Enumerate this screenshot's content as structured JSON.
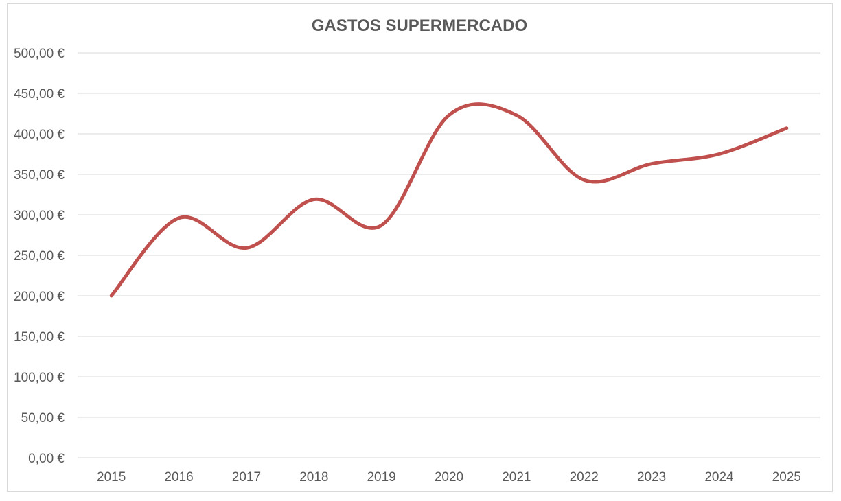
{
  "chart_data": {
    "type": "line",
    "title": "GASTOS SUPERMERCADO",
    "xlabel": "",
    "ylabel": "",
    "categories": [
      "2015",
      "2016",
      "2017",
      "2018",
      "2019",
      "2020",
      "2021",
      "2022",
      "2023",
      "2024",
      "2025"
    ],
    "series": [
      {
        "values": [
          200,
          296,
          259,
          319,
          287,
          423,
          423,
          343,
          363,
          375,
          407
        ],
        "color": "#c0504d",
        "smooth": true
      }
    ],
    "yticks": [
      "0,00 €",
      "50,00 €",
      "100,00 €",
      "150,00 €",
      "200,00 €",
      "250,00 €",
      "300,00 €",
      "350,00 €",
      "400,00 €",
      "450,00 €",
      "500,00 €"
    ],
    "ylim": [
      0,
      500
    ],
    "grid": true,
    "legend": "none"
  }
}
